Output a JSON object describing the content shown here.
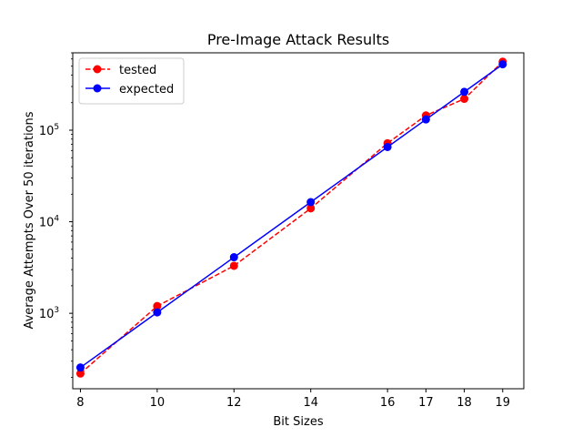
{
  "chart_data": {
    "type": "line",
    "title": "Pre-Image Attack Results",
    "xlabel": "Bit Sizes",
    "ylabel": "Average Attempts Over 50 iterations",
    "x": [
      8,
      10,
      12,
      14,
      16,
      17,
      18,
      19
    ],
    "x_ticks": [
      8,
      10,
      12,
      14,
      16,
      17,
      18,
      19
    ],
    "y_scale": "log",
    "ylim": [
      150,
      700000
    ],
    "y_ticks": [
      {
        "value": 1000,
        "base": "10",
        "exp": "3"
      },
      {
        "value": 10000,
        "base": "10",
        "exp": "4"
      },
      {
        "value": 100000,
        "base": "10",
        "exp": "5"
      }
    ],
    "legend_position": "top-left",
    "series": [
      {
        "name": "tested",
        "color": "#ff0000",
        "line_style": "dashed",
        "marker": "circle",
        "values": [
          220,
          1200,
          3300,
          14000,
          72000,
          145000,
          220000,
          560000
        ]
      },
      {
        "name": "expected",
        "color": "#0000ff",
        "line_style": "solid",
        "marker": "circle",
        "values": [
          256,
          1024,
          4096,
          16384,
          65536,
          131072,
          262144,
          524288
        ]
      }
    ]
  }
}
